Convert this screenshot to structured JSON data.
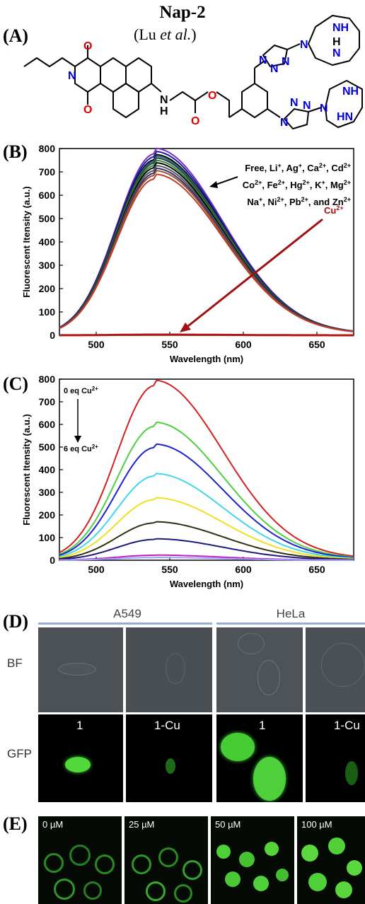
{
  "panel_a": {
    "label": "(A)",
    "title": "Nap-2",
    "citation_prefix": "(Lu ",
    "citation_italic": "et al.",
    "citation_suffix": ")",
    "atoms": {
      "o1": "O",
      "o2": "O",
      "n_imide": "N",
      "nh1": "N",
      "h1": "H",
      "o3": "O",
      "o4": "O",
      "nt1": "N",
      "nt2": "N",
      "nt3": "N",
      "nt4": "N",
      "nt5": "N",
      "nt6": "N",
      "nc1a": "N",
      "nc1b": "NH",
      "nc1c": "N",
      "nc1d": "H",
      "nc2a": "N",
      "nc2b": "NH",
      "nc2c": "HN"
    }
  },
  "panel_b": {
    "label": "(B)"
  },
  "panel_c": {
    "label": "(C)"
  },
  "panel_d": {
    "label": "(D)",
    "col_groups": [
      "A549",
      "HeLa"
    ],
    "row_labels": [
      "BF",
      "GFP"
    ],
    "gfp_labels": [
      "1",
      "1-Cu",
      "1",
      "1-Cu"
    ]
  },
  "panel_e": {
    "label": "(E)",
    "concentrations": [
      "0 µM",
      "25 µM",
      "50 µM",
      "100 µM"
    ]
  },
  "colors": {
    "bright_field": "#4a4f55",
    "gfp": "#3cc83c",
    "arrow_b": "#a01010"
  },
  "chart_data": [
    {
      "type": "line",
      "ylabel": "Fluorescent Itensity (a.u.)",
      "xlabel": "Wavelength (nm)",
      "xlim": [
        475,
        675
      ],
      "ylim": [
        0,
        800
      ],
      "xticks": [
        500,
        550,
        600,
        650
      ],
      "yticks": [
        0,
        100,
        200,
        300,
        400,
        500,
        600,
        700,
        800
      ],
      "peak_x": 540,
      "annotation_free": [
        "Free, Li",
        "+",
        ", Ag",
        "+",
        ", Ca",
        "2+",
        ", Cd",
        "2+"
      ],
      "annotation_free_2": [
        "Co",
        "2+",
        ", Fe",
        "2+",
        ", Hg",
        "2+",
        ", K",
        "+",
        ", Mg",
        "2+"
      ],
      "annotation_free_3": [
        "Na",
        "+",
        ", Ni",
        "2+",
        ", Pb",
        "2+",
        ", and Zn",
        "2+"
      ],
      "annotation_cu": [
        "Cu",
        "2+"
      ],
      "series": [
        {
          "color": "#7b2fbe",
          "peak": 778
        },
        {
          "color": "#1a1aa0",
          "peak": 765
        },
        {
          "color": "#000000",
          "peak": 752
        },
        {
          "color": "#2a6f8f",
          "peak": 745
        },
        {
          "color": "#3a3a3a",
          "peak": 738
        },
        {
          "color": "#2c8a3a",
          "peak": 728
        },
        {
          "color": "#000000",
          "peak": 718
        },
        {
          "color": "#555555",
          "peak": 706
        },
        {
          "color": "#3b2a7a",
          "peak": 695
        },
        {
          "color": "#8a5a2a",
          "peak": 685
        },
        {
          "color": "#c0392b",
          "peak": 670
        },
        {
          "color": "#b01818",
          "peak": 3
        }
      ]
    },
    {
      "type": "line",
      "ylabel": "Fluorescent Itensity (a.u.)",
      "xlabel": "Wavelength (nm)",
      "xlim": [
        475,
        675
      ],
      "ylim": [
        0,
        800
      ],
      "xticks": [
        500,
        550,
        600,
        650
      ],
      "yticks": [
        0,
        100,
        200,
        300,
        400,
        500,
        600,
        700,
        800
      ],
      "peak_x": 540,
      "annotation_top": [
        "0 eq Cu",
        "2+"
      ],
      "annotation_bottom": [
        "6 eq Cu",
        "2+"
      ],
      "series": [
        {
          "color": "#d42020",
          "peak": 772
        },
        {
          "color": "#4cd040",
          "peak": 592
        },
        {
          "color": "#2020d0",
          "peak": 498
        },
        {
          "color": "#40d8e8",
          "peak": 372
        },
        {
          "color": "#f0e020",
          "peak": 268
        },
        {
          "color": "#303010",
          "peak": 165
        },
        {
          "color": "#1a1a80",
          "peak": 92
        },
        {
          "color": "#c020c0",
          "peak": 22
        },
        {
          "color": "#a0a0ff",
          "peak": 12
        }
      ]
    }
  ]
}
